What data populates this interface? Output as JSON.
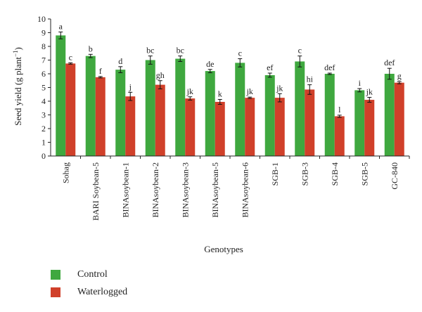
{
  "chart_data": {
    "type": "bar",
    "xlabel": "Genotypes",
    "ylabel_main": "Seed yield (g plant",
    "ylabel_sup": "−1",
    "ylabel_tail": ")",
    "ylim": [
      0,
      10
    ],
    "yticks": [
      "0",
      "1",
      "2",
      "3",
      "4",
      "5",
      "6",
      "7",
      "8",
      "9",
      "10"
    ],
    "grid": false,
    "legend_position": "bottom-left",
    "categories": [
      "Sohag",
      "BARI Soybean-5",
      "BINAsoybean-1",
      "BINAsoybean-2",
      "BINAsoybean-3",
      "BINAsoybean-5",
      "BINAsoybean-6",
      "SGB-1",
      "SGB-3",
      "SGB-4",
      "SGB-5",
      "GC-840"
    ],
    "series": [
      {
        "name": "Control",
        "color": "#3fa83f",
        "values": [
          8.8,
          7.3,
          6.3,
          7.0,
          7.1,
          6.2,
          6.8,
          5.9,
          6.9,
          6.0,
          4.8,
          6.0
        ],
        "errors": [
          0.25,
          0.12,
          0.22,
          0.3,
          0.2,
          0.12,
          0.3,
          0.15,
          0.4,
          0.05,
          0.12,
          0.4
        ],
        "labels": [
          "a",
          "b",
          "d",
          "bc",
          "bc",
          "de",
          "c",
          "ef",
          "c",
          "def",
          "i",
          "def"
        ]
      },
      {
        "name": "Waterlogged",
        "color": "#d0402a",
        "values": [
          6.75,
          5.75,
          4.35,
          5.2,
          4.2,
          3.95,
          4.25,
          4.25,
          4.85,
          2.9,
          4.1,
          5.35
        ],
        "errors": [
          0.05,
          0.05,
          0.3,
          0.3,
          0.12,
          0.18,
          0.05,
          0.3,
          0.35,
          0.08,
          0.18,
          0.08
        ],
        "labels": [
          "c",
          "f",
          "j",
          "gh",
          "jk",
          "k",
          "jk",
          "jk",
          "hi",
          "l",
          "jk",
          "g"
        ]
      }
    ]
  }
}
